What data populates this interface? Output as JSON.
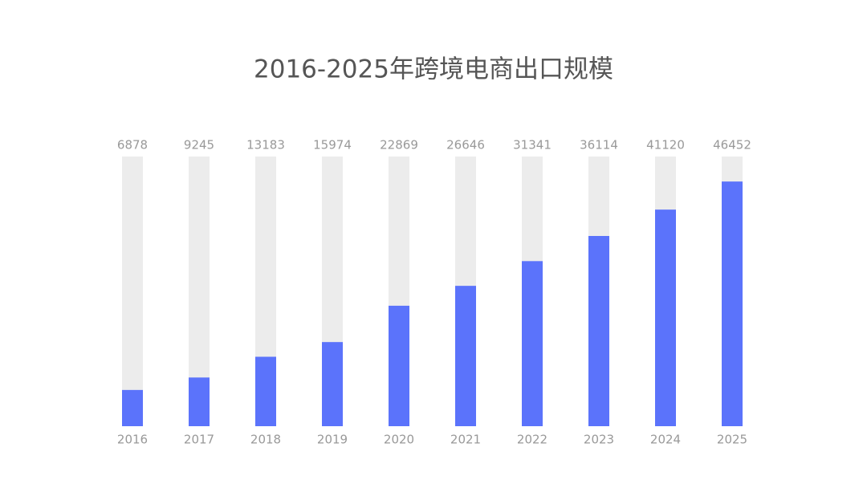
{
  "chart_data": {
    "type": "bar",
    "title": "2016-2025年跨境电商出口规模",
    "categories": [
      "2016",
      "2017",
      "2018",
      "2019",
      "2020",
      "2021",
      "2022",
      "2023",
      "2024",
      "2025"
    ],
    "values": [
      6878,
      9245,
      13183,
      15974,
      22869,
      26646,
      31341,
      36114,
      41120,
      46452
    ],
    "color": "#5b73fb",
    "track_color": "#ececec",
    "ylim": [
      0,
      51200
    ]
  }
}
